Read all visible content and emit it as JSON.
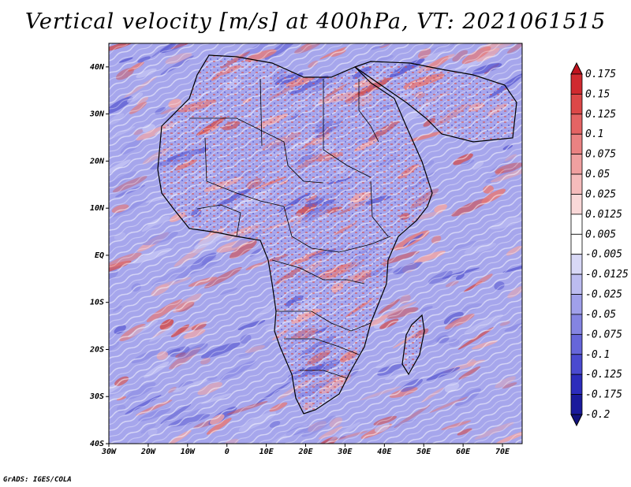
{
  "title": "Vertical velocity [m/s] at 400hPa, VT: 2021061515",
  "credit": "GrADS: IGES/COLA",
  "map": {
    "lat_range": [
      -40,
      45
    ],
    "lon_range": [
      -30,
      75
    ],
    "lat_ticks": [
      "40N",
      "30N",
      "20N",
      "10N",
      "EQ",
      "10S",
      "20S",
      "30S",
      "40S"
    ],
    "lon_ticks": [
      "30W",
      "20W",
      "10W",
      "0",
      "10E",
      "20E",
      "30E",
      "40E",
      "50E",
      "60E",
      "70E"
    ],
    "field": "vertical velocity",
    "colors": {
      "negative": "#5a5ad8",
      "positive": "#e06a6a",
      "coast": "#000000"
    }
  },
  "colorbar": {
    "labels": [
      "0.175",
      "0.15",
      "0.125",
      "0.1",
      "0.075",
      "0.05",
      "0.025",
      "0.0125",
      "0.005",
      "-0.005",
      "-0.0125",
      "-0.025",
      "-0.05",
      "-0.075",
      "-0.1",
      "-0.125",
      "-0.175",
      "-0.2"
    ],
    "colors": [
      "#c0141e",
      "#d02a2f",
      "#dc4848",
      "#e46464",
      "#ea8282",
      "#f0a0a0",
      "#f5bcbc",
      "#f9d8d8",
      "#ffffff",
      "#ffffff",
      "#d8d8f6",
      "#bcbcf0",
      "#a0a0ea",
      "#8484e2",
      "#6666da",
      "#4a4ad0",
      "#2c2cbc",
      "#1a1a9c",
      "#12127e"
    ]
  }
}
